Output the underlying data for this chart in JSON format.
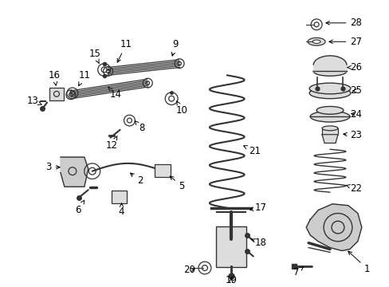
{
  "background_color": "#ffffff",
  "line_color": "#000000",
  "part_color": "#444444",
  "label_fontsize": 8.5,
  "figsize": [
    4.89,
    3.6
  ],
  "dpi": 100
}
